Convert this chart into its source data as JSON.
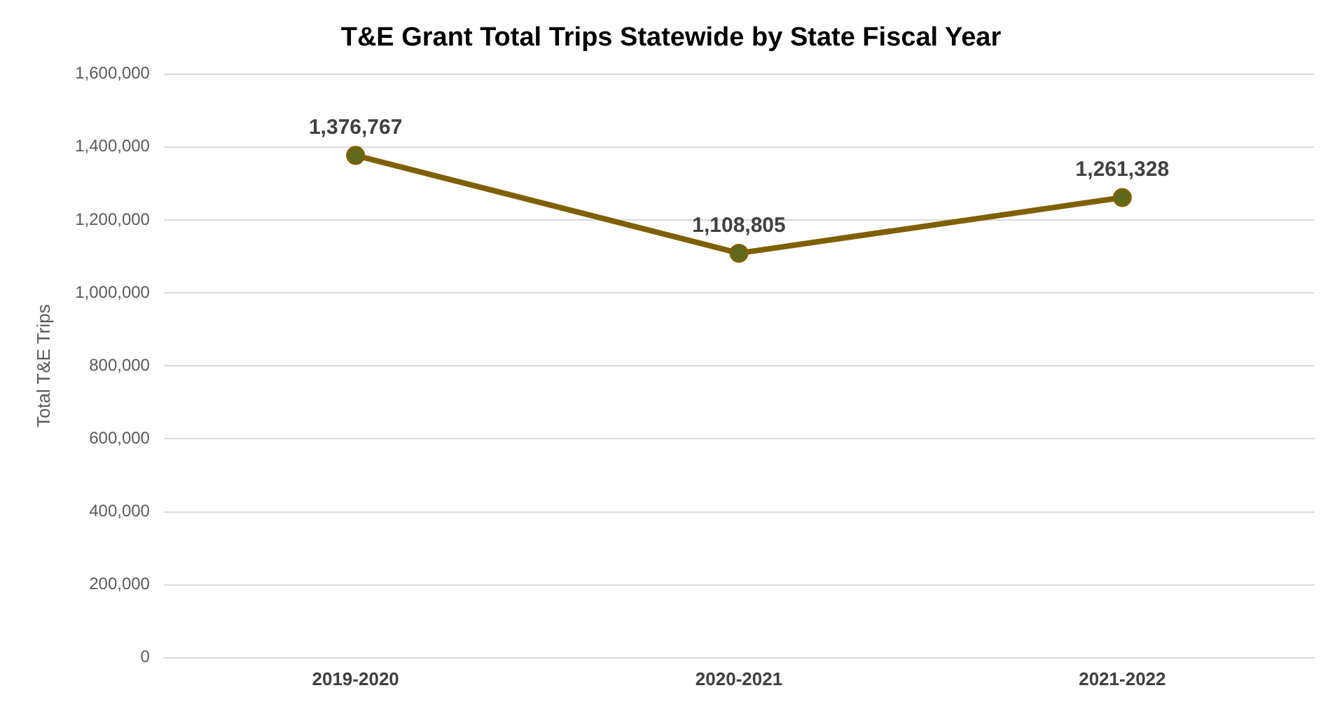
{
  "chart_data": {
    "type": "line",
    "title": "T&E Grant Total Trips Statewide by State Fiscal Year",
    "ylabel": "Total T&E Trips",
    "categories": [
      "2019-2020",
      "2020-2021",
      "2021-2022"
    ],
    "series": [
      {
        "color": "#7f6000",
        "values": [
          1376767,
          1108805,
          1261328
        ],
        "value_labels": [
          "1,376,767",
          "1,108,805",
          "1,261,328"
        ]
      }
    ],
    "ylim": [
      0,
      1600000
    ],
    "yticks": [
      {
        "value": 0,
        "label": "0"
      },
      {
        "value": 200000,
        "label": "200,000"
      },
      {
        "value": 400000,
        "label": "400,000"
      },
      {
        "value": 600000,
        "label": "600,000"
      },
      {
        "value": 800000,
        "label": "800,000"
      },
      {
        "value": 1000000,
        "label": "1,000,000"
      },
      {
        "value": 1200000,
        "label": "1,200,000"
      },
      {
        "value": 1400000,
        "label": "1,400,000"
      },
      {
        "value": 1600000,
        "label": "1,600,000"
      }
    ],
    "grid": "y",
    "legend": false,
    "marker": "circle",
    "line_style": "solid"
  }
}
